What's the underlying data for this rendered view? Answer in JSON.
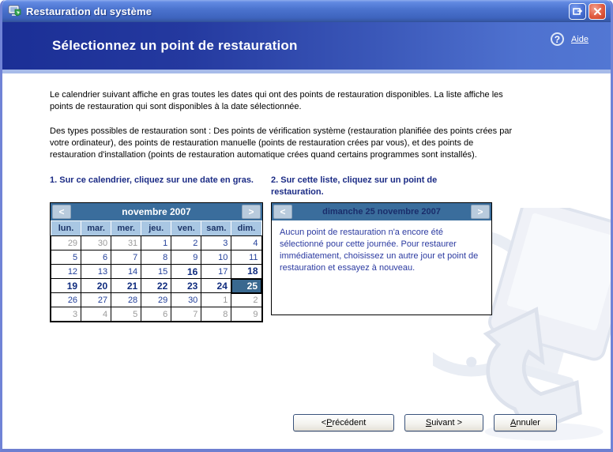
{
  "window": {
    "title": "Restauration du système"
  },
  "titlebar": {
    "maximize_glyph": "restore-window",
    "close_glyph": "✕"
  },
  "header": {
    "title": "Sélectionnez un point de restauration",
    "help_icon_glyph": "?",
    "help_label": "Aide"
  },
  "intro": {
    "p1": "Le calendrier suivant affiche en gras toutes les dates qui ont des points de restauration disponibles. La liste affiche les points de restauration qui sont disponibles à la date sélectionnée.",
    "p2": "Des types possibles de restauration sont : Des points de vérification système (restauration planifiée des points crées par votre ordinateur), des points de restauration manuelle (points de restauration crées par vous), et des points de restauration d'installation (points de restauration automatique crées quand certains programmes sont installés)."
  },
  "step1": {
    "heading": "1. Sur ce calendrier, cliquez sur une date en gras."
  },
  "step2": {
    "heading": "2. Sur cette liste, cliquez sur un point de restauration."
  },
  "calendar": {
    "month_label": "novembre 2007",
    "prev_glyph": "<",
    "next_glyph": ">",
    "weekdays": [
      "lun.",
      "mar.",
      "mer.",
      "jeu.",
      "ven.",
      "sam.",
      "dim."
    ],
    "weeks": [
      [
        {
          "d": 29,
          "t": "out"
        },
        {
          "d": 30,
          "t": "out"
        },
        {
          "d": 31,
          "t": "out"
        },
        {
          "d": 1,
          "t": "in"
        },
        {
          "d": 2,
          "t": "in"
        },
        {
          "d": 3,
          "t": "in"
        },
        {
          "d": 4,
          "t": "in"
        }
      ],
      [
        {
          "d": 5,
          "t": "in"
        },
        {
          "d": 6,
          "t": "in"
        },
        {
          "d": 7,
          "t": "in"
        },
        {
          "d": 8,
          "t": "in"
        },
        {
          "d": 9,
          "t": "in"
        },
        {
          "d": 10,
          "t": "in"
        },
        {
          "d": 11,
          "t": "in"
        }
      ],
      [
        {
          "d": 12,
          "t": "in"
        },
        {
          "d": 13,
          "t": "in"
        },
        {
          "d": 14,
          "t": "in"
        },
        {
          "d": 15,
          "t": "in"
        },
        {
          "d": 16,
          "t": "bold"
        },
        {
          "d": 17,
          "t": "in"
        },
        {
          "d": 18,
          "t": "bold"
        }
      ],
      [
        {
          "d": 19,
          "t": "bold"
        },
        {
          "d": 20,
          "t": "bold"
        },
        {
          "d": 21,
          "t": "bold"
        },
        {
          "d": 22,
          "t": "bold"
        },
        {
          "d": 23,
          "t": "bold"
        },
        {
          "d": 24,
          "t": "bold"
        },
        {
          "d": 25,
          "t": "sel"
        }
      ],
      [
        {
          "d": 26,
          "t": "in"
        },
        {
          "d": 27,
          "t": "in"
        },
        {
          "d": 28,
          "t": "in"
        },
        {
          "d": 29,
          "t": "in"
        },
        {
          "d": 30,
          "t": "in"
        },
        {
          "d": 1,
          "t": "out"
        },
        {
          "d": 2,
          "t": "out"
        }
      ],
      [
        {
          "d": 3,
          "t": "out"
        },
        {
          "d": 4,
          "t": "out"
        },
        {
          "d": 5,
          "t": "out"
        },
        {
          "d": 6,
          "t": "out"
        },
        {
          "d": 7,
          "t": "out"
        },
        {
          "d": 8,
          "t": "out"
        },
        {
          "d": 9,
          "t": "out"
        }
      ]
    ],
    "selected_day": 25
  },
  "restore_list": {
    "header": "dimanche 25 novembre 2007",
    "prev_glyph": "<",
    "next_glyph": ">",
    "message": "Aucun point de restauration n'a encore été sélectionné pour cette journée. Pour restaurer immédiatement, choisissez un autre jour et point de restauration et essayez à nouveau."
  },
  "buttons": {
    "back": {
      "pre": "< ",
      "key": "P",
      "rest": "récédent"
    },
    "next": {
      "pre": "",
      "key": "S",
      "rest": "uivant >"
    },
    "cancel": {
      "pre": "",
      "key": "A",
      "rest": "nnuler"
    }
  },
  "icons": {
    "app": "system-restore-icon",
    "help": "help-question-icon",
    "watermark": "system-restore-watermark"
  },
  "colors": {
    "titlebar_blue": "#4B73CE",
    "band_left": "#1B2F96",
    "band_right": "#5277D3",
    "divider_strip": "#A7BBE9",
    "panel_header_blue": "#3A6D9C",
    "weekday_bg": "#A9C7E3",
    "date_navy": "#23409A",
    "date_bold_navy": "#0F2B7E",
    "date_out_gray": "#9A9A9A",
    "selected_bg": "#39688F",
    "heading_navy": "#1B2B85",
    "message_navy": "#2B3AA0",
    "close_red": "#E15C41",
    "window_border": "#7083D6"
  }
}
